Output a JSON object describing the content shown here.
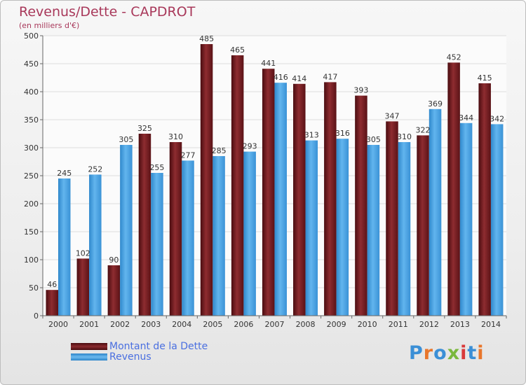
{
  "title": "Revenus/Dette - CAPDROT",
  "subtitle": "(en milliers d'€)",
  "logo": {
    "text": "Proxiti",
    "letter_colors": [
      "#3b8fd6",
      "#e8762b",
      "#3b8fd6",
      "#7ab83c",
      "#d93a3a",
      "#3b8fd6",
      "#e8762b"
    ]
  },
  "chart_data": {
    "type": "bar",
    "title": "Revenus/Dette - CAPDROT",
    "subtitle": "(en milliers d'€)",
    "categories": [
      "2000",
      "2001",
      "2002",
      "2003",
      "2004",
      "2005",
      "2006",
      "2007",
      "2008",
      "2009",
      "2010",
      "2011",
      "2012",
      "2013",
      "2014"
    ],
    "series": [
      {
        "name": "Montant de la Dette",
        "color": "#7a1e22",
        "values": [
          46,
          102,
          90,
          325,
          310,
          485,
          465,
          441,
          414,
          417,
          393,
          347,
          322,
          452,
          415
        ]
      },
      {
        "name": "Revenus",
        "color": "#4aa3e6",
        "values": [
          245,
          252,
          305,
          255,
          277,
          285,
          293,
          416,
          313,
          316,
          305,
          310,
          369,
          344,
          342
        ]
      }
    ],
    "yticks": [
      0,
      50,
      100,
      150,
      200,
      250,
      300,
      350,
      400,
      450,
      500
    ],
    "ylim": [
      0,
      500
    ],
    "grid": true,
    "legend_position": "bottom-left"
  }
}
